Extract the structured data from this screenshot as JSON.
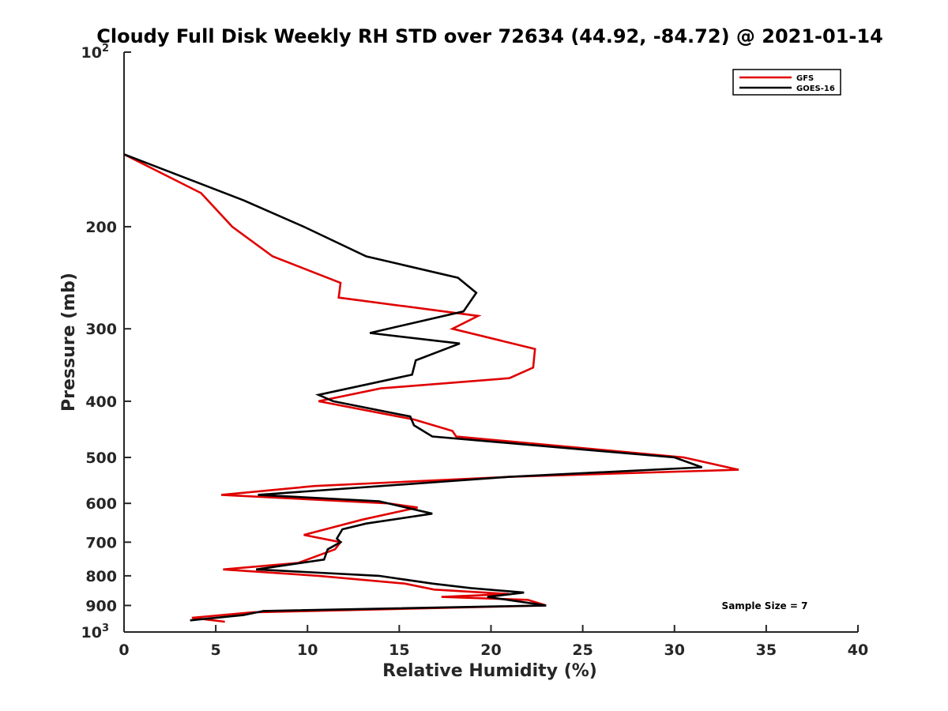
{
  "chart_data": {
    "type": "line",
    "title": "Cloudy Full Disk Weekly RH STD over 72634 (44.92, -84.72) @ 2021-01-14",
    "xlabel": "Relative Humidity (%)",
    "ylabel": "Pressure (mb)",
    "xlim": [
      0,
      40
    ],
    "ylim": [
      100,
      1000
    ],
    "y_scale": "log",
    "y_reversed": true,
    "x_ticks": [
      "0",
      "5",
      "10",
      "15",
      "20",
      "25",
      "30",
      "35",
      "40"
    ],
    "y_ticks": [
      {
        "value": 100,
        "base": "10",
        "exp": "2"
      },
      {
        "value": 200,
        "label": "200"
      },
      {
        "value": 300,
        "label": "300"
      },
      {
        "value": 400,
        "label": "400"
      },
      {
        "value": 500,
        "label": "500"
      },
      {
        "value": 600,
        "label": "600"
      },
      {
        "value": 700,
        "label": "700"
      },
      {
        "value": 800,
        "label": "800"
      },
      {
        "value": 900,
        "label": "900"
      },
      {
        "value": 1000,
        "base": "10",
        "exp": "3"
      }
    ],
    "legend_position": "top-right",
    "annotation": "Sample Size = 7",
    "series": [
      {
        "name": "GFS",
        "color": "#e00000",
        "points": [
          [
            0,
            150
          ],
          [
            4.2,
            175
          ],
          [
            5.9,
            200
          ],
          [
            8.1,
            225
          ],
          [
            11.8,
            250
          ],
          [
            11.7,
            265
          ],
          [
            19.3,
            285
          ],
          [
            17.9,
            300
          ],
          [
            22.4,
            325
          ],
          [
            22.3,
            350
          ],
          [
            21.0,
            365
          ],
          [
            14.0,
            380
          ],
          [
            10.6,
            400
          ],
          [
            15.8,
            430
          ],
          [
            17.9,
            450
          ],
          [
            18.1,
            460
          ],
          [
            30.5,
            500
          ],
          [
            33.5,
            525
          ],
          [
            21.0,
            540
          ],
          [
            10.4,
            560
          ],
          [
            5.3,
            580
          ],
          [
            14.4,
            600
          ],
          [
            16.0,
            610
          ],
          [
            13.0,
            640
          ],
          [
            9.8,
            680
          ],
          [
            11.8,
            700
          ],
          [
            11.5,
            720
          ],
          [
            9.5,
            760
          ],
          [
            5.4,
            780
          ],
          [
            10.6,
            800
          ],
          [
            15.3,
            825
          ],
          [
            16.9,
            845
          ],
          [
            21.0,
            860
          ],
          [
            17.3,
            870
          ],
          [
            22.0,
            880
          ],
          [
            23.0,
            900
          ],
          [
            7.0,
            925
          ],
          [
            3.7,
            945
          ],
          [
            5.5,
            960
          ]
        ]
      },
      {
        "name": "GOES-16",
        "color": "#000000",
        "points": [
          [
            0,
            150
          ],
          [
            6.5,
            180
          ],
          [
            9.8,
            200
          ],
          [
            13.2,
            225
          ],
          [
            18.2,
            245
          ],
          [
            19.2,
            260
          ],
          [
            18.5,
            280
          ],
          [
            13.4,
            305
          ],
          [
            18.3,
            318
          ],
          [
            15.9,
            340
          ],
          [
            15.7,
            360
          ],
          [
            10.6,
            390
          ],
          [
            11.4,
            400
          ],
          [
            15.6,
            425
          ],
          [
            15.8,
            440
          ],
          [
            16.8,
            460
          ],
          [
            30.0,
            500
          ],
          [
            31.5,
            520
          ],
          [
            21.0,
            540
          ],
          [
            7.3,
            580
          ],
          [
            13.9,
            595
          ],
          [
            16.8,
            625
          ],
          [
            13.2,
            650
          ],
          [
            11.9,
            665
          ],
          [
            11.6,
            690
          ],
          [
            11.8,
            700
          ],
          [
            11.1,
            720
          ],
          [
            10.9,
            750
          ],
          [
            7.2,
            780
          ],
          [
            13.9,
            800
          ],
          [
            16.8,
            825
          ],
          [
            18.9,
            840
          ],
          [
            21.8,
            855
          ],
          [
            19.8,
            870
          ],
          [
            23.0,
            900
          ],
          [
            7.6,
            920
          ],
          [
            6.5,
            935
          ],
          [
            3.6,
            955
          ]
        ]
      }
    ]
  }
}
